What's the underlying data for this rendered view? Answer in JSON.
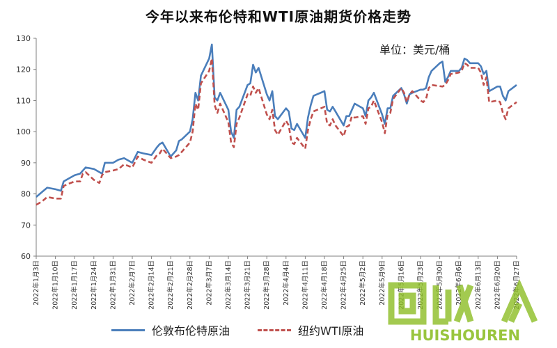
{
  "chart_data": {
    "type": "line",
    "title": "今年以来布伦特和WTI原油期货价格走势",
    "unit_label": "单位：美元/桶",
    "ylim": [
      60,
      130
    ],
    "yticks": [
      60,
      70,
      80,
      90,
      100,
      110,
      120,
      130
    ],
    "grid": false,
    "legend_position": "bottom",
    "x_dates": [
      "2022/1/3",
      "2022/1/10",
      "2022/1/17",
      "2022/1/24",
      "2022/1/31",
      "2022/2/7",
      "2022/2/14",
      "2022/2/21",
      "2022/2/28",
      "2022/3/7",
      "2022/3/14",
      "2022/3/21",
      "2022/3/28",
      "2022/4/4",
      "2022/4/11",
      "2022/4/18",
      "2022/4/25",
      "2022/5/2",
      "2022/5/9",
      "2022/5/16",
      "2022/5/23",
      "2022/5/30",
      "2022/6/6",
      "2022/6/13",
      "2022/6/20",
      "2022/6/27"
    ],
    "x_tick_labels": [
      "2022年1月3日",
      "2022年1月10日",
      "2022年1月17日",
      "2022年1月24日",
      "2022年1月31日",
      "2022年2月7日",
      "2022年2月14日",
      "2022年2月21日",
      "2022年2月28日",
      "2022年3月7日",
      "2022年3月14日",
      "2022年3月21日",
      "2022年3月28日",
      "2022年4月4日",
      "2022年4月11日",
      "2022年4月18日",
      "2022年4月25日",
      "2022年5月2日",
      "2022年5月9日",
      "2022年5月16日",
      "2022年5月23日",
      "2022年5月30日",
      "2022年6月6日",
      "2022年6月13日",
      "2022年6月20日",
      "2022年6月27日"
    ],
    "series": [
      {
        "name": "伦敦布伦特原油",
        "color": "#4a7ebb",
        "style": "solid",
        "points": [
          [
            "2022/1/3",
            79
          ],
          [
            "2022/1/5",
            80.5
          ],
          [
            "2022/1/7",
            82
          ],
          [
            "2022/1/10",
            81.5
          ],
          [
            "2022/1/12",
            81
          ],
          [
            "2022/1/13",
            84
          ],
          [
            "2022/1/14",
            84.5
          ],
          [
            "2022/1/17",
            86
          ],
          [
            "2022/1/19",
            86.5
          ],
          [
            "2022/1/20",
            87.5
          ],
          [
            "2022/1/21",
            88.5
          ],
          [
            "2022/1/24",
            88
          ],
          [
            "2022/1/26",
            87
          ],
          [
            "2022/1/27",
            86.5
          ],
          [
            "2022/1/28",
            90
          ],
          [
            "2022/1/31",
            90
          ],
          [
            "2022/2/2",
            91
          ],
          [
            "2022/2/4",
            91.5
          ],
          [
            "2022/2/7",
            90
          ],
          [
            "2022/2/9",
            93.5
          ],
          [
            "2022/2/11",
            93
          ],
          [
            "2022/2/14",
            92.5
          ],
          [
            "2022/2/16",
            95
          ],
          [
            "2022/2/17",
            96
          ],
          [
            "2022/2/18",
            96.5
          ],
          [
            "2022/2/21",
            92
          ],
          [
            "2022/2/23",
            94
          ],
          [
            "2022/2/24",
            97
          ],
          [
            "2022/2/25",
            97.5
          ],
          [
            "2022/2/28",
            100
          ],
          [
            "2022/3/1",
            104
          ],
          [
            "2022/3/2",
            112.5
          ],
          [
            "2022/3/3",
            110
          ],
          [
            "2022/3/4",
            118
          ],
          [
            "2022/3/7",
            123.5
          ],
          [
            "2022/3/8",
            128
          ],
          [
            "2022/3/9",
            111
          ],
          [
            "2022/3/10",
            110
          ],
          [
            "2022/3/11",
            112.5
          ],
          [
            "2022/3/14",
            107
          ],
          [
            "2022/3/15",
            100
          ],
          [
            "2022/3/16",
            98
          ],
          [
            "2022/3/17",
            107
          ],
          [
            "2022/3/18",
            108
          ],
          [
            "2022/3/21",
            115
          ],
          [
            "2022/3/22",
            115.5
          ],
          [
            "2022/3/23",
            121.5
          ],
          [
            "2022/3/24",
            119
          ],
          [
            "2022/3/25",
            120.5
          ],
          [
            "2022/3/28",
            112
          ],
          [
            "2022/3/29",
            110
          ],
          [
            "2022/3/30",
            113
          ],
          [
            "2022/3/31",
            105
          ],
          [
            "2022/4/1",
            104
          ],
          [
            "2022/4/4",
            107.5
          ],
          [
            "2022/4/5",
            106.5
          ],
          [
            "2022/4/6",
            101
          ],
          [
            "2022/4/7",
            100.5
          ],
          [
            "2022/4/8",
            102.5
          ],
          [
            "2022/4/11",
            98
          ],
          [
            "2022/4/12",
            104.5
          ],
          [
            "2022/4/13",
            108.5
          ],
          [
            "2022/4/14",
            111.5
          ],
          [
            "2022/4/18",
            113
          ],
          [
            "2022/4/19",
            107
          ],
          [
            "2022/4/20",
            106.5
          ],
          [
            "2022/4/21",
            108
          ],
          [
            "2022/4/22",
            106.5
          ],
          [
            "2022/4/25",
            102
          ],
          [
            "2022/4/26",
            105
          ],
          [
            "2022/4/27",
            105
          ],
          [
            "2022/4/28",
            107
          ],
          [
            "2022/4/29",
            109
          ],
          [
            "2022/5/2",
            107.5
          ],
          [
            "2022/5/3",
            105
          ],
          [
            "2022/5/4",
            110
          ],
          [
            "2022/5/5",
            111
          ],
          [
            "2022/5/6",
            112.5
          ],
          [
            "2022/5/9",
            105.5
          ],
          [
            "2022/5/10",
            102.5
          ],
          [
            "2022/5/11",
            107.5
          ],
          [
            "2022/5/12",
            107.5
          ],
          [
            "2022/5/13",
            111.5
          ],
          [
            "2022/5/16",
            114
          ],
          [
            "2022/5/17",
            112
          ],
          [
            "2022/5/18",
            109
          ],
          [
            "2022/5/19",
            112
          ],
          [
            "2022/5/20",
            112.5
          ],
          [
            "2022/5/23",
            113.5
          ],
          [
            "2022/5/24",
            113.5
          ],
          [
            "2022/5/25",
            114
          ],
          [
            "2022/5/26",
            117.5
          ],
          [
            "2022/5/27",
            119.5
          ],
          [
            "2022/5/30",
            122
          ],
          [
            "2022/5/31",
            122.5
          ],
          [
            "2022/6/1",
            116
          ],
          [
            "2022/6/2",
            117.5
          ],
          [
            "2022/6/3",
            119.5
          ],
          [
            "2022/6/6",
            119.5
          ],
          [
            "2022/6/7",
            120.5
          ],
          [
            "2022/6/8",
            123.5
          ],
          [
            "2022/6/9",
            123
          ],
          [
            "2022/6/10",
            122
          ],
          [
            "2022/6/13",
            122
          ],
          [
            "2022/6/14",
            121
          ],
          [
            "2022/6/15",
            118.5
          ],
          [
            "2022/6/16",
            119.5
          ],
          [
            "2022/6/17",
            113
          ],
          [
            "2022/6/20",
            114.5
          ],
          [
            "2022/6/21",
            114.5
          ],
          [
            "2022/6/22",
            111.5
          ],
          [
            "2022/6/23",
            110
          ],
          [
            "2022/6/24",
            113
          ],
          [
            "2022/6/27",
            115
          ]
        ]
      },
      {
        "name": "纽约WTI原油",
        "color": "#c0504d",
        "style": "dashed",
        "points": [
          [
            "2022/1/3",
            76.5
          ],
          [
            "2022/1/5",
            77.5
          ],
          [
            "2022/1/7",
            79
          ],
          [
            "2022/1/10",
            78.5
          ],
          [
            "2022/1/12",
            78.5
          ],
          [
            "2022/1/13",
            82.5
          ],
          [
            "2022/1/14",
            83
          ],
          [
            "2022/1/17",
            84
          ],
          [
            "2022/1/19",
            84
          ],
          [
            "2022/1/20",
            86.5
          ],
          [
            "2022/1/21",
            87
          ],
          [
            "2022/1/24",
            84.5
          ],
          [
            "2022/1/26",
            83.5
          ],
          [
            "2022/1/27",
            86
          ],
          [
            "2022/1/28",
            87
          ],
          [
            "2022/1/31",
            87.5
          ],
          [
            "2022/2/2",
            88
          ],
          [
            "2022/2/4",
            89.5
          ],
          [
            "2022/2/7",
            88.5
          ],
          [
            "2022/2/9",
            92
          ],
          [
            "2022/2/11",
            91
          ],
          [
            "2022/2/14",
            90
          ],
          [
            "2022/2/16",
            92.5
          ],
          [
            "2022/2/17",
            93
          ],
          [
            "2022/2/18",
            94.5
          ],
          [
            "2022/2/21",
            91.5
          ],
          [
            "2022/2/23",
            92
          ],
          [
            "2022/2/24",
            92.5
          ],
          [
            "2022/2/25",
            93.5
          ],
          [
            "2022/2/28",
            96.5
          ],
          [
            "2022/3/1",
            100
          ],
          [
            "2022/3/2",
            109
          ],
          [
            "2022/3/3",
            107
          ],
          [
            "2022/3/4",
            115.5
          ],
          [
            "2022/3/7",
            119.5
          ],
          [
            "2022/3/8",
            123.5
          ],
          [
            "2022/3/9",
            108.5
          ],
          [
            "2022/3/10",
            106
          ],
          [
            "2022/3/11",
            109
          ],
          [
            "2022/3/14",
            103
          ],
          [
            "2022/3/15",
            96.5
          ],
          [
            "2022/3/16",
            95
          ],
          [
            "2022/3/17",
            102.5
          ],
          [
            "2022/3/18",
            104.5
          ],
          [
            "2022/3/21",
            112
          ],
          [
            "2022/3/22",
            111.5
          ],
          [
            "2022/3/23",
            114.5
          ],
          [
            "2022/3/24",
            112.5
          ],
          [
            "2022/3/25",
            114
          ],
          [
            "2022/3/28",
            105.5
          ],
          [
            "2022/3/29",
            104
          ],
          [
            "2022/3/30",
            107
          ],
          [
            "2022/3/31",
            100.5
          ],
          [
            "2022/4/1",
            99
          ],
          [
            "2022/4/4",
            103.5
          ],
          [
            "2022/4/5",
            102
          ],
          [
            "2022/4/6",
            96.5
          ],
          [
            "2022/4/7",
            96
          ],
          [
            "2022/4/8",
            98
          ],
          [
            "2022/4/11",
            94.5
          ],
          [
            "2022/4/12",
            100.5
          ],
          [
            "2022/4/13",
            104
          ],
          [
            "2022/4/14",
            106.5
          ],
          [
            "2022/4/18",
            108
          ],
          [
            "2022/4/19",
            102.5
          ],
          [
            "2022/4/20",
            102
          ],
          [
            "2022/4/21",
            104
          ],
          [
            "2022/4/22",
            102
          ],
          [
            "2022/4/25",
            98.5
          ],
          [
            "2022/4/26",
            101.5
          ],
          [
            "2022/4/27",
            102
          ],
          [
            "2022/4/28",
            105
          ],
          [
            "2022/4/29",
            104.5
          ],
          [
            "2022/5/2",
            105
          ],
          [
            "2022/5/3",
            102.5
          ],
          [
            "2022/5/4",
            107.5
          ],
          [
            "2022/5/5",
            108
          ],
          [
            "2022/5/6",
            110
          ],
          [
            "2022/5/9",
            103
          ],
          [
            "2022/5/10",
            99.5
          ],
          [
            "2022/5/11",
            105.5
          ],
          [
            "2022/5/12",
            106
          ],
          [
            "2022/5/13",
            110.5
          ],
          [
            "2022/5/16",
            114
          ],
          [
            "2022/5/17",
            112.5
          ],
          [
            "2022/5/18",
            109.5
          ],
          [
            "2022/5/19",
            112
          ],
          [
            "2022/5/20",
            113
          ],
          [
            "2022/5/23",
            110
          ],
          [
            "2022/5/24",
            109.5
          ],
          [
            "2022/5/25",
            110.5
          ],
          [
            "2022/5/26",
            114
          ],
          [
            "2022/5/27",
            115
          ],
          [
            "2022/5/31",
            114.5
          ],
          [
            "2022/6/1",
            115
          ],
          [
            "2022/6/2",
            116.5
          ],
          [
            "2022/6/3",
            118.5
          ],
          [
            "2022/6/6",
            119
          ],
          [
            "2022/6/7",
            119.5
          ],
          [
            "2022/6/8",
            122
          ],
          [
            "2022/6/9",
            121.5
          ],
          [
            "2022/6/10",
            120.5
          ],
          [
            "2022/6/13",
            120.5
          ],
          [
            "2022/6/14",
            119
          ],
          [
            "2022/6/15",
            115
          ],
          [
            "2022/6/16",
            117.5
          ],
          [
            "2022/6/17",
            109.5
          ],
          [
            "2022/6/20",
            110
          ],
          [
            "2022/6/21",
            109.5
          ],
          [
            "2022/6/22",
            106
          ],
          [
            "2022/6/23",
            104
          ],
          [
            "2022/6/24",
            107.5
          ],
          [
            "2022/6/27",
            109.5
          ]
        ]
      }
    ]
  },
  "watermark": {
    "text": "HUISHOUREN",
    "color": "#8fbf2a"
  }
}
